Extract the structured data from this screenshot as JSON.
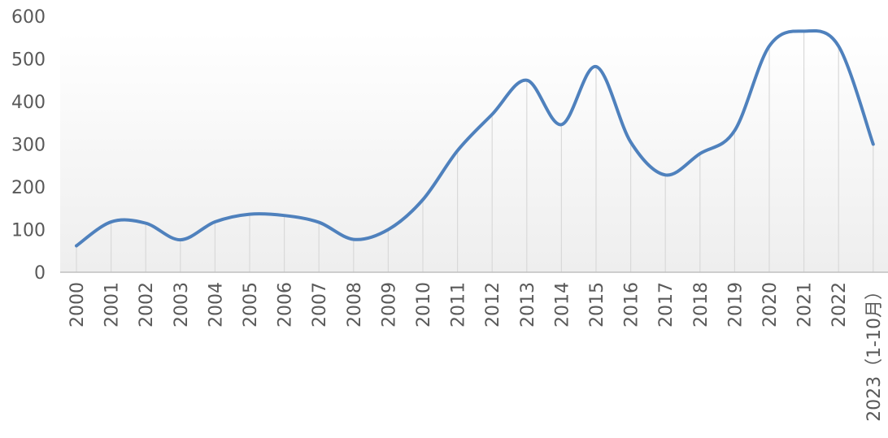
{
  "chart_data": {
    "type": "line",
    "title": "",
    "xlabel": "",
    "ylabel": "",
    "ylim": [
      0,
      600
    ],
    "yticks": [
      0,
      100,
      200,
      300,
      400,
      500,
      600
    ],
    "grid": "vertical drop lines",
    "legend": "none",
    "categories": [
      "2000",
      "2001",
      "2002",
      "2003",
      "2004",
      "2005",
      "2006",
      "2007",
      "2008",
      "2009",
      "2010",
      "2011",
      "2012",
      "2013",
      "2014",
      "2015",
      "2016",
      "2017",
      "2018",
      "2019",
      "2020",
      "2021",
      "2022",
      "2023（1-10月）"
    ],
    "series": [
      {
        "values": [
          62,
          118,
          115,
          76,
          118,
          136,
          133,
          117,
          77,
          100,
          170,
          285,
          370,
          450,
          346,
          482,
          305,
          228,
          278,
          332,
          530,
          565,
          530,
          300
        ]
      }
    ],
    "colors": {
      "line": "#4f81bd",
      "droplines": "#d9d9d9",
      "axis": "#bfbfbf",
      "text": "#595959",
      "background_top": "#ffffff",
      "background_bottom": "#eeeeee"
    }
  }
}
